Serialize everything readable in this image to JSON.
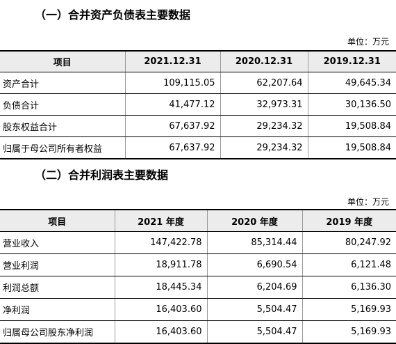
{
  "balance": {
    "heading": "（一）合并资产负债表主要数据",
    "unit": "单位：万元",
    "headers": [
      "项目",
      "2021.12.31",
      "2020.12.31",
      "2019.12.31"
    ],
    "rows": [
      {
        "item": "资产合计",
        "values": [
          "109,115.05",
          "62,207.64",
          "49,645.34"
        ]
      },
      {
        "item": "负债合计",
        "values": [
          "41,477.12",
          "32,973.31",
          "30,136.50"
        ]
      },
      {
        "item": "股东权益合计",
        "values": [
          "67,637.92",
          "29,234.32",
          "19,508.84"
        ]
      },
      {
        "item": "归属于母公司所有者权益",
        "values": [
          "67,637.92",
          "29,234.32",
          "19,508.84"
        ]
      }
    ]
  },
  "income": {
    "heading": "（二）合并利润表主要数据",
    "unit": "单位：万元",
    "headers": [
      "项目",
      "2021 年度",
      "2020 年度",
      "2019 年度"
    ],
    "rows": [
      {
        "item": "营业收入",
        "values": [
          "147,422.78",
          "85,314.44",
          "80,247.92"
        ]
      },
      {
        "item": "营业利润",
        "values": [
          "18,911.78",
          "6,690.54",
          "6,121.48"
        ]
      },
      {
        "item": "利润总额",
        "values": [
          "18,445.34",
          "6,204.69",
          "6,136.30"
        ]
      },
      {
        "item": "净利润",
        "values": [
          "16,403.60",
          "5,504.47",
          "5,169.93"
        ]
      },
      {
        "item": "归属母公司股东净利润",
        "values": [
          "16,403.60",
          "5,504.47",
          "5,169.93"
        ]
      }
    ]
  }
}
